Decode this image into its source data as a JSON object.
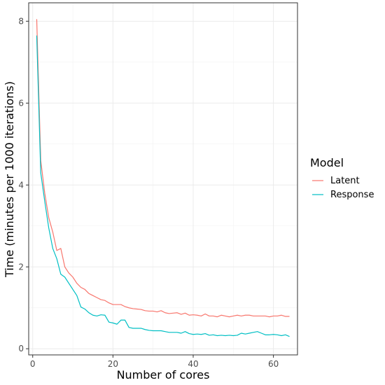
{
  "chart_data": {
    "type": "line",
    "title": "",
    "xlabel": "Number of cores",
    "ylabel": "Time (minutes per 1000 iterations)",
    "xlim": [
      -1,
      66
    ],
    "ylim": [
      -0.15,
      8.45
    ],
    "x_ticks": [
      0,
      20,
      40,
      60
    ],
    "y_ticks": [
      0,
      2,
      4,
      6,
      8
    ],
    "grid": true,
    "legend": {
      "title": "Model",
      "placement": "right"
    },
    "series": [
      {
        "name": "Latent",
        "color": "#F8766D",
        "x": [
          1,
          2,
          3,
          4,
          5,
          6,
          7,
          8,
          9,
          10,
          11,
          12,
          13,
          14,
          15,
          16,
          17,
          18,
          19,
          20,
          21,
          22,
          23,
          24,
          25,
          26,
          27,
          28,
          29,
          30,
          31,
          32,
          33,
          34,
          35,
          36,
          37,
          38,
          39,
          40,
          41,
          42,
          43,
          44,
          45,
          46,
          47,
          48,
          49,
          50,
          51,
          52,
          53,
          54,
          55,
          56,
          57,
          58,
          59,
          60,
          61,
          62,
          63,
          64
        ],
        "y": [
          8.05,
          4.6,
          3.8,
          3.2,
          2.85,
          2.4,
          2.45,
          2.0,
          1.85,
          1.75,
          1.6,
          1.5,
          1.45,
          1.35,
          1.3,
          1.25,
          1.2,
          1.18,
          1.12,
          1.08,
          1.08,
          1.08,
          1.03,
          1.0,
          0.98,
          0.97,
          0.96,
          0.93,
          0.92,
          0.92,
          0.9,
          0.93,
          0.88,
          0.86,
          0.87,
          0.88,
          0.84,
          0.87,
          0.82,
          0.83,
          0.82,
          0.8,
          0.85,
          0.8,
          0.8,
          0.78,
          0.82,
          0.8,
          0.78,
          0.8,
          0.82,
          0.8,
          0.82,
          0.82,
          0.8,
          0.8,
          0.8,
          0.8,
          0.78,
          0.8,
          0.8,
          0.82,
          0.79,
          0.79
        ]
      },
      {
        "name": "Response",
        "color": "#00BFC4",
        "x": [
          1,
          2,
          3,
          4,
          5,
          6,
          7,
          8,
          9,
          10,
          11,
          12,
          13,
          14,
          15,
          16,
          17,
          18,
          19,
          20,
          21,
          22,
          23,
          24,
          25,
          26,
          27,
          28,
          29,
          30,
          31,
          32,
          33,
          34,
          35,
          36,
          37,
          38,
          39,
          40,
          41,
          42,
          43,
          44,
          45,
          46,
          47,
          48,
          49,
          50,
          51,
          52,
          53,
          54,
          55,
          56,
          57,
          58,
          59,
          60,
          61,
          62,
          63,
          64
        ],
        "y": [
          7.65,
          4.3,
          3.6,
          2.95,
          2.45,
          2.2,
          1.82,
          1.75,
          1.6,
          1.45,
          1.3,
          1.02,
          0.97,
          0.88,
          0.82,
          0.8,
          0.83,
          0.82,
          0.65,
          0.63,
          0.6,
          0.7,
          0.7,
          0.52,
          0.5,
          0.5,
          0.5,
          0.47,
          0.45,
          0.44,
          0.44,
          0.44,
          0.42,
          0.4,
          0.4,
          0.4,
          0.38,
          0.42,
          0.37,
          0.35,
          0.36,
          0.35,
          0.37,
          0.33,
          0.34,
          0.32,
          0.33,
          0.32,
          0.33,
          0.32,
          0.33,
          0.38,
          0.36,
          0.38,
          0.4,
          0.42,
          0.38,
          0.34,
          0.34,
          0.35,
          0.34,
          0.32,
          0.34,
          0.3
        ]
      }
    ]
  }
}
